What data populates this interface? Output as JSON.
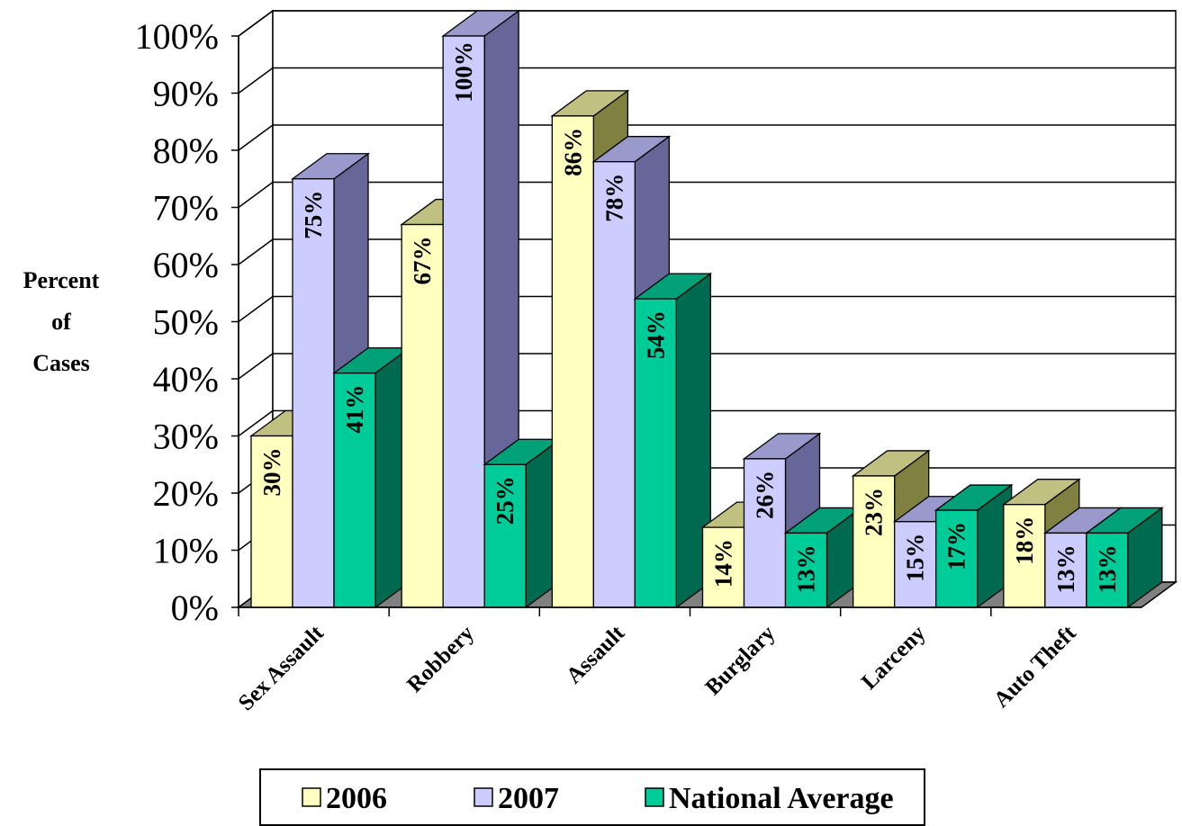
{
  "chart_data": {
    "type": "bar",
    "categories": [
      "Sex Assault",
      "Robbery",
      "Assault",
      "Burglary",
      "Larceny",
      "Auto Theft"
    ],
    "series": [
      {
        "name": "2006",
        "values": [
          30,
          67,
          86,
          14,
          23,
          18
        ],
        "labels": [
          "30%",
          "67%",
          "86%",
          "14%",
          "23%",
          "18%"
        ]
      },
      {
        "name": "2007",
        "values": [
          75,
          100,
          78,
          26,
          15,
          13
        ],
        "labels": [
          "75%",
          "100%",
          "78%",
          "26%",
          "15%",
          "13%"
        ]
      },
      {
        "name": "National Average",
        "values": [
          41,
          25,
          54,
          13,
          17,
          13
        ],
        "labels": [
          "41%",
          "25%",
          "54%",
          "13%",
          "17%",
          "13%"
        ]
      }
    ],
    "ylabel": [
      "Percent",
      "of",
      "Cases"
    ],
    "ylim": [
      0,
      100
    ],
    "yticks": [
      "0%",
      "10%",
      "20%",
      "30%",
      "40%",
      "50%",
      "60%",
      "70%",
      "80%",
      "90%",
      "100%"
    ],
    "grid": true,
    "three_d": true,
    "legend_position": "bottom",
    "colors": {
      "2006": {
        "front": "#ffffc0",
        "side": "#808040",
        "top": "#c0c080"
      },
      "2007": {
        "front": "#ccccff",
        "side": "#666699",
        "top": "#9999cc"
      },
      "National Average": {
        "front": "#00cc99",
        "side": "#006a50",
        "top": "#00a078"
      },
      "floor": "#808080",
      "grid": "#000000"
    }
  }
}
